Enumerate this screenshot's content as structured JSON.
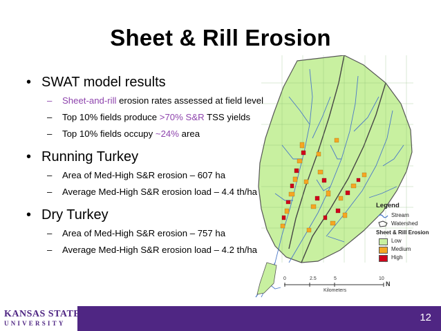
{
  "slide": {
    "title": "Sheet & Rill Erosion",
    "page_number": "12"
  },
  "bullets": [
    {
      "text": "SWAT model results",
      "sub": [
        {
          "parts": [
            {
              "t": "Sheet-and-rill",
              "hl": true
            },
            {
              "t": " erosion rates assessed at field level",
              "hl": false
            }
          ]
        },
        {
          "parts": [
            {
              "t": "Top 10% fields produce ",
              "hl": false
            },
            {
              "t": ">70% S&R",
              "hl": true
            },
            {
              "t": " TSS yields",
              "hl": false
            }
          ]
        },
        {
          "parts": [
            {
              "t": "Top 10% fields occupy ",
              "hl": false
            },
            {
              "t": "~24%",
              "hl": true
            },
            {
              "t": " area",
              "hl": false
            }
          ]
        }
      ]
    },
    {
      "text": "Running Turkey",
      "sub": [
        {
          "parts": [
            {
              "t": "Area of Med-High S&R erosion – 607 ha",
              "hl": false
            }
          ]
        },
        {
          "parts": [
            {
              "t": "Average Med-High S&R erosion load – 4.4 th/ha",
              "hl": false
            }
          ]
        }
      ]
    },
    {
      "text": "Dry Turkey",
      "sub": [
        {
          "parts": [
            {
              "t": "Area of Med-High S&R erosion – 757 ha",
              "hl": false
            }
          ]
        },
        {
          "parts": [
            {
              "t": "Average Med-High S&R erosion load – 4.2 th/ha",
              "hl": false
            }
          ]
        }
      ]
    }
  ],
  "legend": {
    "title": "Legend",
    "stream": "Stream",
    "watershed": "Watershed",
    "subtitle": "Sheet & Rill Erosion",
    "classes": [
      {
        "label": "Low",
        "color": "#c8f0a0"
      },
      {
        "label": "Medium",
        "color": "#f5a623"
      },
      {
        "label": "High",
        "color": "#d0021b"
      }
    ]
  },
  "scale_bar": {
    "ticks": [
      "0",
      "2.5",
      "5",
      "10"
    ],
    "unit": "Kilometers",
    "north": "N"
  },
  "footer": {
    "logo_top": "KANSAS STATE",
    "logo_bottom": "UNIVERSITY",
    "bar_color": "#4f2683"
  },
  "colors": {
    "highlight": "#8e44ad",
    "field_green": "#c8f0a0",
    "stream_blue": "#4a78c8"
  }
}
